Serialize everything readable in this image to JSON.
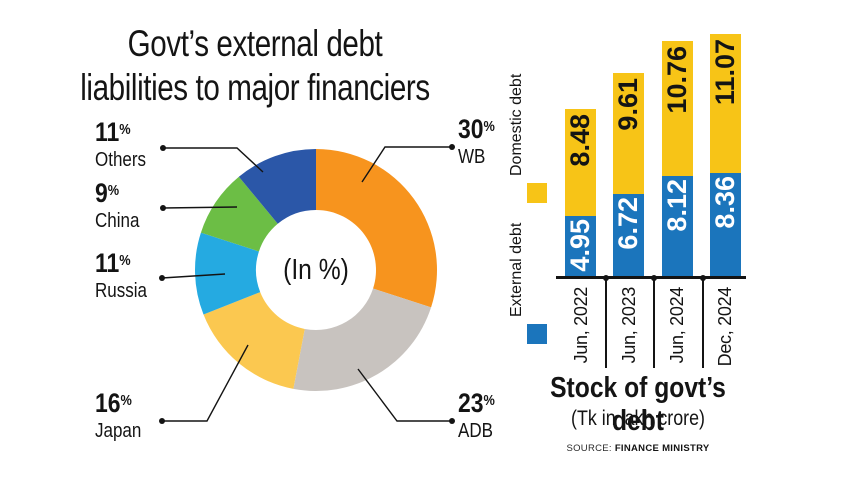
{
  "chart_data": [
    {
      "type": "pie",
      "subtype": "donut",
      "title": "Govt's external debt liabilities to major financiers",
      "title_lines": [
        "Govt’s external debt",
        "liabilities to major financiers"
      ],
      "center_label": "(In %)",
      "unit": "%",
      "slices": [
        {
          "label": "WB",
          "value": 30,
          "color": "#F7941E"
        },
        {
          "label": "ADB",
          "value": 23,
          "color": "#C8C3BF"
        },
        {
          "label": "Japan",
          "value": 16,
          "color": "#FBC850"
        },
        {
          "label": "Russia",
          "value": 11,
          "color": "#25AAE1"
        },
        {
          "label": "China",
          "value": 9,
          "color": "#6CBE45"
        },
        {
          "label": "Others",
          "value": 11,
          "color": "#2B57A8"
        }
      ]
    },
    {
      "type": "bar",
      "subtype": "stacked",
      "title": "Stock of govt’s debt",
      "subtitle": "(Tk in lakh crore)",
      "source_prefix": "SOURCE:",
      "source": "FINANCE MINISTRY",
      "categories": [
        "Jun, 2022",
        "Jun, 2023",
        "Jun, 2024",
        "Dec, 2024"
      ],
      "series": [
        {
          "name": "External debt",
          "color": "#1B75BC",
          "values": [
            4.95,
            6.72,
            8.12,
            8.36
          ],
          "label_color": "#FFFFFF"
        },
        {
          "name": "Domestic debt",
          "color": "#F7C417",
          "values": [
            8.48,
            9.61,
            10.76,
            11.07
          ],
          "label_color": "#141414"
        }
      ],
      "legend_position": "left",
      "grid": false
    }
  ],
  "colors": {
    "background": "#FFFFFF",
    "text": "#141414"
  }
}
